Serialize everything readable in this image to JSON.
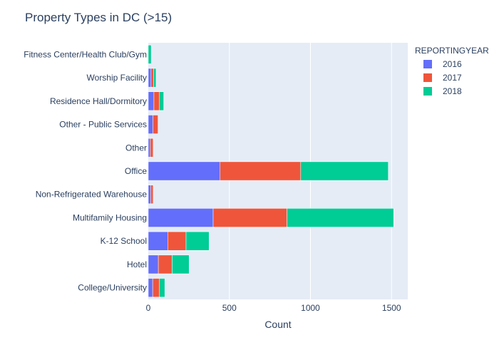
{
  "chart_data": {
    "type": "bar",
    "orientation": "horizontal",
    "barmode": "stack",
    "title": "Property Types in DC (>15)",
    "xlabel": "Count",
    "ylabel": "",
    "xlim": [
      0,
      1600
    ],
    "xticks": [
      0,
      500,
      1000,
      1500
    ],
    "grid": true,
    "legend": {
      "title": "REPORTINGYEAR",
      "placement": "top-right"
    },
    "categories": [
      "College/University",
      "Hotel",
      "K-12 School",
      "Multifamily Housing",
      "Non-Refrigerated Warehouse",
      "Office",
      "Other",
      "Other - Public Services",
      "Residence Hall/Dormitory",
      "Worship Facility",
      "Fitness Center/Health Club/Gym"
    ],
    "series": [
      {
        "name": "2016",
        "color": "#636efa",
        "values": [
          27,
          62,
          120,
          400,
          15,
          443,
          13,
          28,
          35,
          17,
          0
        ]
      },
      {
        "name": "2017",
        "color": "#ef553b",
        "values": [
          40,
          85,
          113,
          455,
          15,
          497,
          17,
          32,
          32,
          16,
          0
        ]
      },
      {
        "name": "2018",
        "color": "#00cc96",
        "values": [
          35,
          105,
          142,
          658,
          0,
          540,
          0,
          0,
          28,
          15,
          18
        ]
      }
    ]
  }
}
